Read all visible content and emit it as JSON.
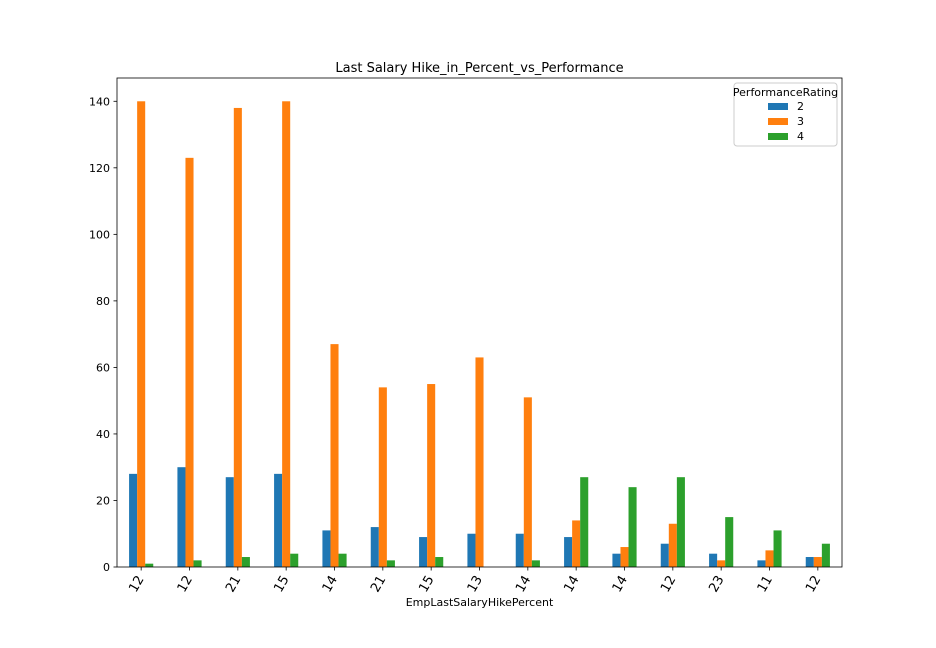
{
  "chart_data": {
    "type": "bar",
    "title": "Last Salary Hike_in_Percent_vs_Performance",
    "xlabel": "EmpLastSalaryHikePercent",
    "ylabel": "",
    "ylim": [
      0,
      147
    ],
    "yticks": [
      0,
      20,
      40,
      60,
      80,
      100,
      120,
      140
    ],
    "categories": [
      "12",
      "12",
      "21",
      "15",
      "14",
      "21",
      "15",
      "13",
      "14",
      "14",
      "14",
      "12",
      "23",
      "11",
      "12"
    ],
    "legend_title": "PerformanceRating",
    "legend_position": "top-right",
    "grid": false,
    "series": [
      {
        "name": "2",
        "color": "#1f77b4",
        "values": [
          28,
          30,
          27,
          28,
          11,
          12,
          9,
          10,
          10,
          9,
          4,
          7,
          4,
          2,
          3
        ]
      },
      {
        "name": "3",
        "color": "#ff7f0e",
        "values": [
          140,
          123,
          138,
          140,
          67,
          54,
          55,
          63,
          51,
          14,
          6,
          13,
          2,
          5,
          3
        ]
      },
      {
        "name": "4",
        "color": "#2ca02c",
        "values": [
          1,
          2,
          3,
          4,
          4,
          2,
          3,
          0,
          2,
          27,
          24,
          27,
          15,
          11,
          7
        ]
      }
    ]
  }
}
